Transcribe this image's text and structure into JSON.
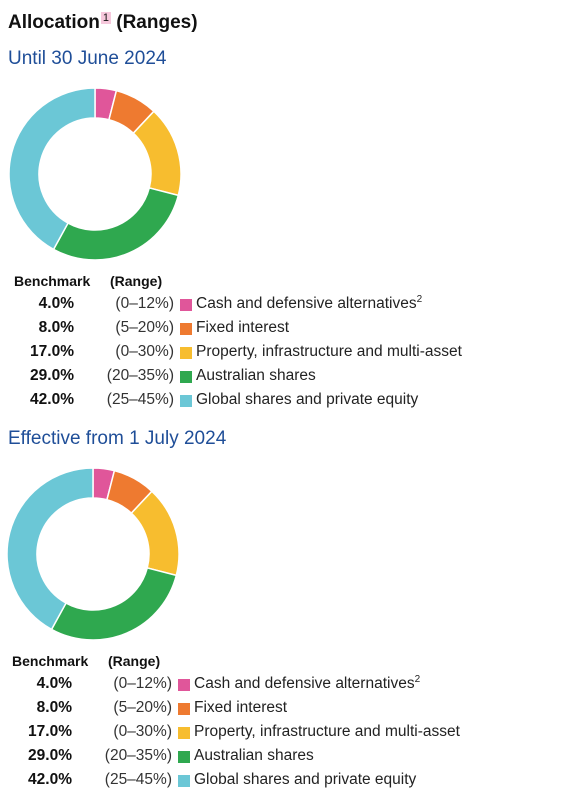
{
  "title": {
    "text": "Allocation",
    "footnote": "1",
    "suffix": " (Ranges)"
  },
  "legend_headers": {
    "benchmark": "Benchmark",
    "range": "(Range)"
  },
  "colors": {
    "cash": "#e0569a",
    "fixed": "#ee7a30",
    "property": "#f7bd2f",
    "australian": "#2fa84f",
    "global": "#6bc7d6"
  },
  "chart_data": [
    {
      "type": "pie",
      "donut": true,
      "title": "Until 30 June 2024",
      "categories": [
        "Cash and defensive alternatives",
        "Fixed interest",
        "Property, infrastructure and multi-asset",
        "Australian shares",
        "Global shares and private equity"
      ],
      "values": [
        4.0,
        8.0,
        17.0,
        29.0,
        42.0
      ],
      "value_labels": [
        "4.0%",
        "8.0%",
        "17.0%",
        "29.0%",
        "42.0%"
      ],
      "ranges": [
        "(0–12%)",
        "(5–20%)",
        "(0–30%)",
        "(20–35%)",
        "(25–45%)"
      ],
      "footnotes": [
        "2",
        "",
        "",
        "",
        ""
      ],
      "color_keys": [
        "cash",
        "fixed",
        "property",
        "australian",
        "global"
      ]
    },
    {
      "type": "pie",
      "donut": true,
      "title": "Effective from 1 July 2024",
      "categories": [
        "Cash and defensive alternatives",
        "Fixed interest",
        "Property, infrastructure and multi-asset",
        "Australian shares",
        "Global shares and private equity"
      ],
      "values": [
        4.0,
        8.0,
        17.0,
        29.0,
        42.0
      ],
      "value_labels": [
        "4.0%",
        "8.0%",
        "17.0%",
        "29.0%",
        "42.0%"
      ],
      "ranges": [
        "(0–12%)",
        "(5–20%)",
        "(0–30%)",
        "(20–35%)",
        "(25–45%)"
      ],
      "footnotes": [
        "2",
        "",
        "",
        "",
        ""
      ],
      "color_keys": [
        "cash",
        "fixed",
        "property",
        "australian",
        "global"
      ]
    }
  ]
}
